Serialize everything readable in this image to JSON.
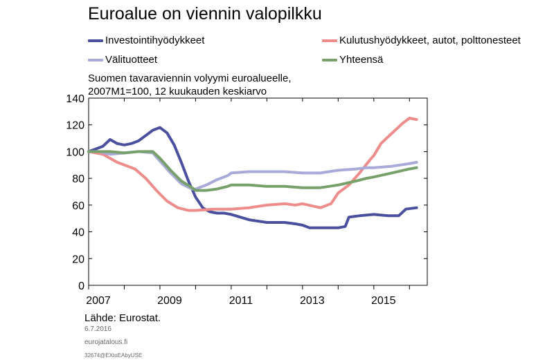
{
  "title": "Euroalue on viennin valopilkku",
  "legend": [
    {
      "label": "Investointihyödykkeet",
      "color": "#4a4f9e"
    },
    {
      "label": "Kulutushyödykkeet, autot, polttonesteet",
      "color": "#ee8c8c"
    },
    {
      "label": "Välituotteet",
      "color": "#a8aad8"
    },
    {
      "label": "Yhteensä",
      "color": "#77a06b"
    }
  ],
  "subtitle_line1": "Suomen tavaraviennin volyymi euroalueelle,",
  "subtitle_line2": "2007M1=100, 12 kuukauden keskiarvo",
  "source": "Lähde: Eurostat.",
  "date": "6.7.2016",
  "site": "eurojatalous.fi",
  "code": "32674@EXtoEAbyUSE",
  "chart_data": {
    "type": "line",
    "xlim": [
      2007,
      2016.5
    ],
    "ylim": [
      0,
      140
    ],
    "yticks": [
      0,
      20,
      40,
      60,
      80,
      100,
      120,
      140
    ],
    "xticks": [
      2007,
      2009,
      2011,
      2013,
      2015
    ],
    "xtick_labels": [
      "2007",
      "2009",
      "2011",
      "2013",
      "2015"
    ],
    "series": [
      {
        "name": "Investointihyödykkeet",
        "color": "#4a4f9e",
        "x": [
          2007.0,
          2007.2,
          2007.4,
          2007.6,
          2007.8,
          2008.0,
          2008.2,
          2008.4,
          2008.6,
          2008.8,
          2009.0,
          2009.2,
          2009.4,
          2009.6,
          2009.8,
          2010.0,
          2010.2,
          2010.4,
          2010.6,
          2010.8,
          2011.0,
          2011.5,
          2012.0,
          2012.5,
          2012.8,
          2013.0,
          2013.2,
          2013.5,
          2013.8,
          2014.0,
          2014.2,
          2014.3,
          2014.6,
          2015.0,
          2015.4,
          2015.7,
          2015.9,
          2016.2
        ],
        "y": [
          100,
          102,
          104,
          109,
          106,
          105,
          106,
          108,
          112,
          116,
          118,
          114,
          105,
          92,
          78,
          66,
          58,
          55,
          54,
          54,
          53,
          49,
          47,
          47,
          46,
          45,
          43,
          43,
          43,
          43,
          44,
          51,
          52,
          53,
          52,
          52,
          57,
          58
        ]
      },
      {
        "name": "Kulutushyödykkeet, autot, polttonesteet",
        "color": "#ee8c8c",
        "x": [
          2007.0,
          2007.2,
          2007.4,
          2007.6,
          2007.8,
          2008.0,
          2008.3,
          2008.6,
          2008.9,
          2009.2,
          2009.5,
          2009.8,
          2010.0,
          2010.5,
          2011.0,
          2011.5,
          2012.0,
          2012.5,
          2012.8,
          2013.0,
          2013.5,
          2013.8,
          2014.0,
          2014.3,
          2014.6,
          2014.9,
          2015.0,
          2015.2,
          2015.4,
          2015.6,
          2015.8,
          2016.0,
          2016.2
        ],
        "y": [
          100,
          99,
          98,
          95,
          92,
          90,
          87,
          80,
          71,
          63,
          58,
          56,
          56,
          57,
          57,
          58,
          60,
          61,
          60,
          61,
          58,
          61,
          69,
          75,
          84,
          94,
          97,
          106,
          111,
          116,
          121,
          125,
          124
        ]
      },
      {
        "name": "Välituotteet",
        "color": "#a8aad8",
        "x": [
          2007.0,
          2007.3,
          2007.6,
          2008.0,
          2008.4,
          2008.8,
          2009.0,
          2009.3,
          2009.6,
          2009.9,
          2010.0,
          2010.3,
          2010.6,
          2010.9,
          2011.0,
          2011.5,
          2012.0,
          2012.5,
          2013.0,
          2013.5,
          2014.0,
          2014.5,
          2014.8,
          2015.0,
          2015.5,
          2016.0,
          2016.2
        ],
        "y": [
          100,
          100,
          98,
          99,
          100,
          99,
          93,
          84,
          76,
          72,
          72,
          75,
          79,
          82,
          84,
          85,
          85,
          85,
          84,
          84,
          86,
          87,
          88,
          88,
          89,
          91,
          92
        ]
      },
      {
        "name": "Yhteensä",
        "color": "#77a06b",
        "x": [
          2007.0,
          2007.3,
          2007.6,
          2008.0,
          2008.4,
          2008.8,
          2009.0,
          2009.3,
          2009.6,
          2009.9,
          2010.0,
          2010.3,
          2010.6,
          2010.9,
          2011.0,
          2011.5,
          2012.0,
          2012.5,
          2013.0,
          2013.5,
          2014.0,
          2014.5,
          2014.8,
          2015.0,
          2015.5,
          2016.0,
          2016.2
        ],
        "y": [
          100,
          100,
          100,
          99,
          100,
          100,
          95,
          86,
          78,
          73,
          71,
          71,
          72,
          74,
          75,
          75,
          74,
          74,
          73,
          73,
          75,
          78,
          80,
          81,
          84,
          87,
          88
        ]
      }
    ]
  }
}
